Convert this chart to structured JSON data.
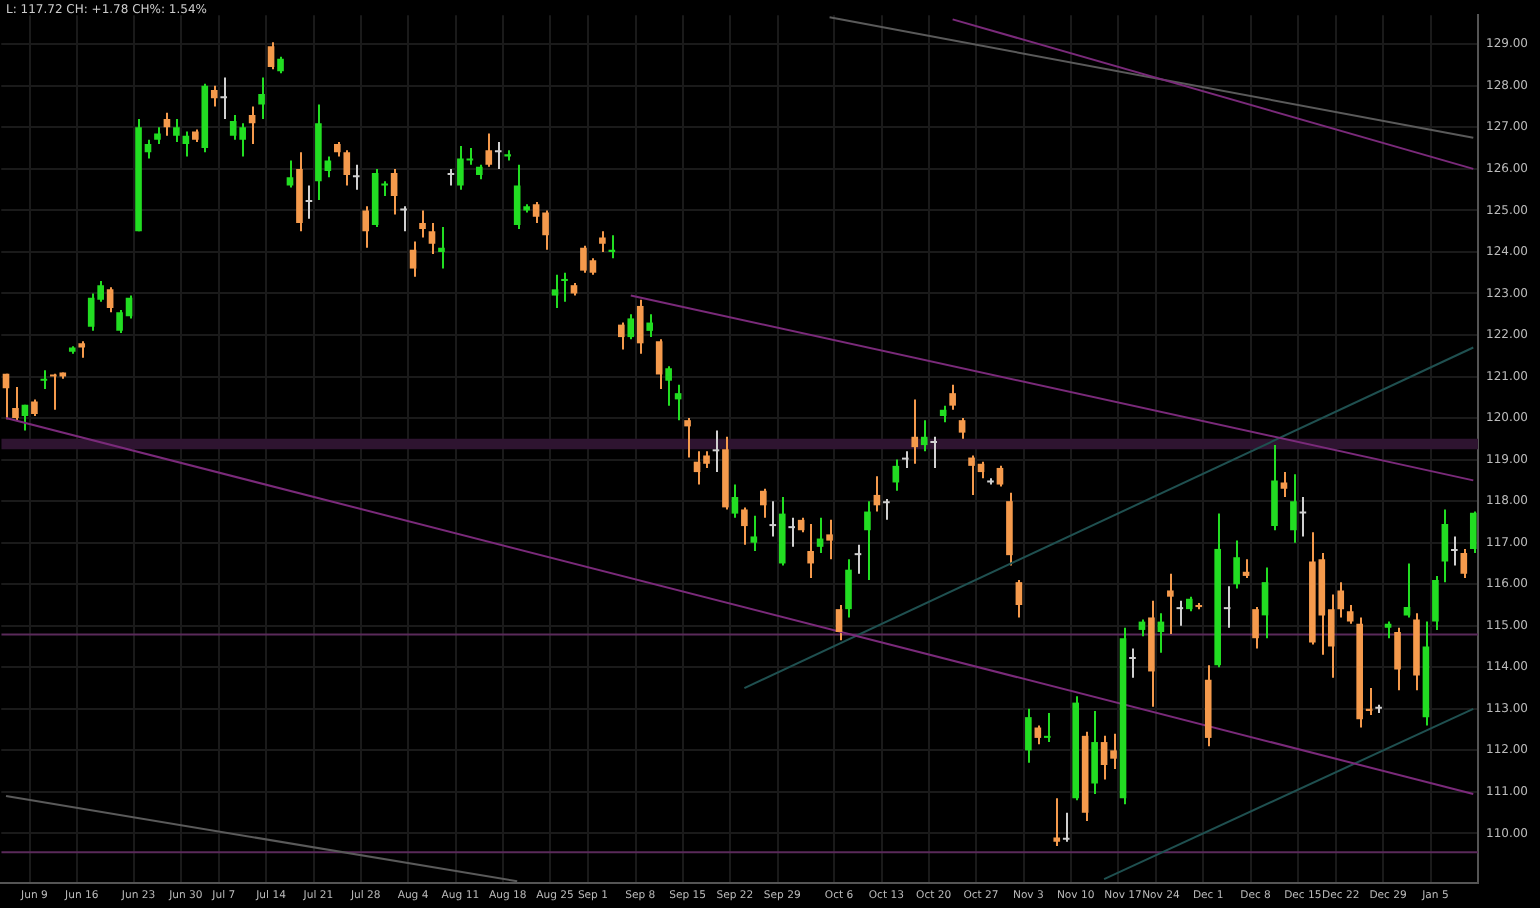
{
  "chart_data": {
    "type": "candlestick",
    "annotations": [
      "L: 117.72 CH: +1.78 CH%: 1.54%"
    ],
    "categories": [
      null,
      null,
      null,
      "Jun 9",
      null,
      null,
      null,
      null,
      "Jun 16",
      null,
      null,
      null,
      null,
      null,
      "Jun 23",
      null,
      null,
      null,
      null,
      "Jun 30",
      null,
      null,
      null,
      "Jul 7",
      null,
      null,
      null,
      null,
      "Jul 14",
      null,
      null,
      null,
      null,
      "Jul 21",
      null,
      null,
      null,
      null,
      "Jul 28",
      null,
      null,
      null,
      null,
      "Aug 4",
      null,
      null,
      null,
      null,
      "Aug 11",
      null,
      null,
      null,
      null,
      "Aug 18",
      null,
      null,
      null,
      null,
      "Aug 25",
      null,
      null,
      null,
      "Sep 1",
      null,
      null,
      null,
      null,
      "Sep 8",
      null,
      null,
      null,
      null,
      "Sep 15",
      null,
      null,
      null,
      null,
      "Sep 22",
      null,
      null,
      null,
      null,
      "Sep 29",
      null,
      null,
      null,
      null,
      null,
      "Oct 6",
      null,
      null,
      null,
      null,
      "Oct 13",
      null,
      null,
      null,
      null,
      "Oct 20",
      null,
      null,
      null,
      null,
      "Oct 27",
      null,
      null,
      null,
      null,
      "Nov 3",
      null,
      null,
      null,
      null,
      "Nov 10",
      null,
      null,
      null,
      null,
      "Nov 17",
      null,
      null,
      null,
      "Nov 24",
      null,
      null,
      null,
      null,
      "Dec 1",
      null,
      null,
      null,
      null,
      "Dec 8",
      null,
      null,
      null,
      null,
      "Dec 15",
      null,
      null,
      null,
      "Dec 22",
      null,
      null,
      null,
      null,
      "Dec 29",
      null,
      null,
      null,
      null,
      "Jan 5",
      null,
      null,
      null,
      null
    ],
    "ohlc": [
      [
        121.07,
        121.07,
        119.97,
        120.72
      ],
      [
        120.24,
        120.75,
        119.94,
        120.0
      ],
      [
        120.05,
        120.32,
        119.7,
        120.32
      ],
      [
        120.4,
        120.45,
        120.05,
        120.1
      ],
      [
        120.9,
        121.15,
        120.7,
        120.95
      ],
      [
        121.05,
        121.07,
        120.2,
        121.0
      ],
      [
        121.1,
        121.1,
        120.95,
        121.0
      ],
      [
        121.6,
        121.73,
        121.55,
        121.7
      ],
      [
        121.8,
        121.85,
        121.45,
        121.7
      ],
      [
        122.2,
        123.0,
        122.1,
        122.9
      ],
      [
        122.85,
        123.3,
        122.8,
        123.2
      ],
      [
        123.1,
        123.15,
        122.55,
        122.65
      ],
      [
        122.1,
        122.6,
        122.05,
        122.55
      ],
      [
        122.45,
        122.95,
        122.4,
        122.9
      ],
      [
        124.5,
        127.2,
        124.5,
        127.0
      ],
      [
        126.4,
        126.7,
        126.25,
        126.6
      ],
      [
        126.7,
        127.0,
        126.6,
        126.85
      ],
      [
        127.2,
        127.35,
        126.8,
        127.0
      ],
      [
        126.8,
        127.2,
        126.65,
        127.0
      ],
      [
        126.6,
        126.9,
        126.3,
        126.8
      ],
      [
        126.9,
        126.95,
        126.65,
        126.7
      ],
      [
        126.5,
        128.05,
        126.4,
        128.0
      ],
      [
        127.9,
        128.0,
        127.5,
        127.7
      ],
      [
        127.7,
        128.2,
        127.2,
        127.7
      ],
      [
        126.8,
        127.3,
        126.7,
        127.15
      ],
      [
        126.7,
        127.1,
        126.3,
        127.0
      ],
      [
        127.3,
        127.5,
        126.6,
        127.1
      ],
      [
        127.55,
        128.2,
        127.2,
        127.8
      ],
      [
        128.95,
        129.05,
        128.4,
        128.45
      ],
      [
        128.35,
        128.7,
        128.3,
        128.65
      ],
      [
        125.6,
        126.2,
        125.55,
        125.8
      ],
      [
        126.0,
        126.4,
        124.5,
        124.7
      ],
      [
        125.2,
        125.6,
        124.8,
        125.2
      ],
      [
        125.7,
        127.55,
        125.25,
        127.1
      ],
      [
        125.95,
        126.3,
        125.8,
        126.2
      ],
      [
        126.6,
        126.65,
        126.3,
        126.4
      ],
      [
        126.4,
        126.45,
        125.6,
        125.85
      ],
      [
        125.8,
        126.1,
        125.5,
        125.8
      ],
      [
        125.0,
        125.1,
        124.1,
        124.5
      ],
      [
        124.65,
        126.0,
        124.6,
        125.9
      ],
      [
        125.6,
        125.7,
        125.35,
        125.65
      ],
      [
        125.9,
        126.0,
        124.9,
        125.35
      ],
      [
        125.0,
        125.1,
        124.5,
        125.0
      ],
      [
        124.05,
        124.25,
        123.4,
        123.6
      ],
      [
        124.7,
        125.0,
        124.35,
        124.55
      ],
      [
        124.5,
        124.7,
        123.95,
        124.2
      ],
      [
        124.0,
        124.6,
        123.6,
        124.1
      ],
      [
        125.85,
        126.0,
        125.6,
        125.85
      ],
      [
        125.6,
        126.55,
        125.5,
        126.25
      ],
      [
        126.2,
        126.5,
        126.1,
        126.25
      ],
      [
        125.85,
        126.1,
        125.75,
        126.05
      ],
      [
        126.45,
        126.85,
        126.05,
        126.1
      ],
      [
        126.4,
        126.65,
        126.0,
        126.4
      ],
      [
        126.3,
        126.45,
        126.2,
        126.35
      ],
      [
        124.65,
        126.1,
        124.55,
        125.6
      ],
      [
        125.0,
        125.15,
        124.95,
        125.1
      ],
      [
        125.15,
        125.2,
        124.7,
        124.85
      ],
      [
        124.95,
        125.0,
        124.05,
        124.4
      ],
      [
        122.95,
        123.45,
        122.65,
        123.1
      ],
      [
        123.3,
        123.5,
        122.8,
        123.35
      ],
      [
        123.2,
        123.25,
        122.95,
        123.0
      ],
      [
        124.1,
        124.15,
        123.5,
        123.55
      ],
      [
        123.8,
        123.85,
        123.45,
        123.5
      ],
      [
        124.35,
        124.5,
        124.0,
        124.2
      ],
      [
        124.0,
        124.4,
        123.85,
        124.05
      ],
      [
        122.25,
        122.3,
        121.65,
        121.95
      ],
      [
        121.95,
        122.5,
        121.9,
        122.4
      ],
      [
        122.7,
        122.85,
        121.55,
        121.8
      ],
      [
        122.1,
        122.5,
        121.95,
        122.3
      ],
      [
        121.85,
        121.9,
        120.7,
        121.05
      ],
      [
        120.9,
        121.25,
        120.3,
        121.2
      ],
      [
        120.45,
        120.8,
        119.95,
        120.6
      ],
      [
        119.95,
        120.0,
        119.05,
        119.8
      ],
      [
        118.95,
        119.2,
        118.4,
        118.7
      ],
      [
        119.1,
        119.2,
        118.8,
        118.9
      ],
      [
        119.2,
        119.7,
        118.7,
        119.2
      ],
      [
        119.25,
        119.55,
        117.8,
        117.85
      ],
      [
        117.7,
        118.4,
        117.6,
        118.1
      ],
      [
        117.8,
        117.85,
        116.95,
        117.4
      ],
      [
        117.0,
        117.65,
        116.8,
        117.15
      ],
      [
        118.25,
        118.3,
        117.6,
        117.9
      ],
      [
        117.4,
        118.0,
        117.15,
        117.4
      ],
      [
        116.5,
        118.1,
        116.45,
        117.7
      ],
      [
        117.35,
        117.6,
        116.9,
        117.35
      ],
      [
        117.55,
        117.6,
        117.25,
        117.3
      ],
      [
        116.8,
        117.45,
        116.15,
        116.5
      ],
      [
        116.9,
        117.6,
        116.75,
        117.1
      ],
      [
        117.2,
        117.55,
        116.6,
        117.05
      ],
      [
        115.4,
        115.5,
        114.65,
        114.85
      ],
      [
        115.4,
        116.6,
        115.2,
        116.35
      ],
      [
        116.7,
        116.95,
        116.25,
        116.7
      ],
      [
        117.3,
        118.0,
        116.1,
        117.75
      ],
      [
        118.15,
        118.6,
        117.75,
        117.9
      ],
      [
        117.95,
        118.05,
        117.55,
        117.95
      ],
      [
        118.45,
        119.0,
        118.25,
        118.85
      ],
      [
        119.0,
        119.2,
        118.8,
        119.0
      ],
      [
        119.55,
        120.45,
        118.9,
        119.3
      ],
      [
        119.35,
        119.95,
        119.2,
        119.55
      ],
      [
        119.4,
        119.55,
        118.8,
        119.4
      ],
      [
        120.05,
        120.3,
        119.9,
        120.2
      ],
      [
        120.6,
        120.8,
        120.2,
        120.3
      ],
      [
        119.95,
        120.0,
        119.5,
        119.65
      ],
      [
        119.05,
        119.1,
        118.15,
        118.85
      ],
      [
        118.9,
        118.95,
        118.55,
        118.7
      ],
      [
        118.45,
        118.55,
        118.4,
        118.45
      ],
      [
        118.8,
        118.85,
        118.35,
        118.4
      ],
      [
        118.0,
        118.2,
        116.45,
        116.7
      ],
      [
        116.05,
        116.1,
        115.2,
        115.5
      ],
      [
        112.0,
        113.0,
        111.7,
        112.8
      ],
      [
        112.55,
        112.6,
        112.15,
        112.3
      ],
      [
        112.3,
        112.9,
        112.2,
        112.35
      ],
      [
        109.9,
        110.85,
        109.7,
        109.8
      ],
      [
        109.85,
        110.5,
        109.8,
        109.85
      ],
      [
        110.85,
        113.3,
        110.8,
        113.15
      ],
      [
        112.35,
        112.45,
        110.3,
        110.5
      ],
      [
        111.2,
        112.95,
        110.95,
        112.2
      ],
      [
        112.2,
        112.35,
        111.3,
        111.65
      ],
      [
        112.0,
        112.4,
        111.55,
        111.8
      ],
      [
        110.85,
        114.95,
        110.7,
        114.7
      ],
      [
        114.2,
        114.45,
        113.75,
        114.2
      ],
      [
        114.9,
        115.15,
        114.75,
        115.1
      ],
      [
        115.2,
        115.6,
        113.05,
        113.9
      ],
      [
        114.85,
        115.3,
        114.35,
        115.1
      ],
      [
        115.85,
        116.25,
        114.8,
        115.7
      ],
      [
        115.4,
        115.6,
        115.0,
        115.4
      ],
      [
        115.4,
        115.7,
        115.35,
        115.65
      ],
      [
        115.5,
        115.55,
        115.4,
        115.45
      ],
      [
        113.7,
        114.05,
        112.1,
        112.3
      ],
      [
        114.05,
        117.7,
        114.0,
        116.85
      ],
      [
        115.4,
        115.95,
        114.95,
        115.4
      ],
      [
        116.0,
        117.05,
        115.9,
        116.65
      ],
      [
        116.3,
        116.6,
        116.15,
        116.2
      ],
      [
        115.4,
        115.45,
        114.45,
        114.7
      ],
      [
        115.25,
        116.4,
        114.7,
        116.05
      ],
      [
        117.4,
        119.35,
        117.3,
        118.5
      ],
      [
        118.45,
        118.7,
        118.1,
        118.3
      ],
      [
        117.3,
        118.65,
        117.0,
        118.0
      ],
      [
        117.7,
        118.1,
        117.15,
        117.7
      ],
      [
        116.55,
        117.25,
        114.55,
        114.6
      ],
      [
        116.6,
        116.75,
        114.3,
        115.25
      ],
      [
        115.4,
        115.75,
        113.75,
        114.5
      ],
      [
        115.85,
        116.05,
        115.2,
        115.4
      ],
      [
        115.35,
        115.5,
        115.05,
        115.1
      ],
      [
        115.05,
        115.2,
        112.55,
        112.75
      ],
      [
        113.0,
        113.5,
        112.85,
        112.95
      ],
      [
        113.0,
        113.1,
        112.9,
        113.0
      ],
      [
        114.95,
        115.1,
        114.7,
        115.05
      ],
      [
        114.85,
        114.95,
        113.45,
        113.95
      ],
      [
        115.25,
        116.5,
        115.2,
        115.45
      ],
      [
        115.15,
        115.3,
        113.45,
        113.8
      ],
      [
        112.8,
        115.1,
        112.6,
        114.5
      ],
      [
        115.1,
        116.2,
        114.9,
        116.1
      ],
      [
        116.55,
        117.8,
        116.05,
        117.45
      ],
      [
        116.8,
        117.15,
        116.45,
        116.8
      ],
      [
        116.75,
        116.85,
        116.15,
        116.25
      ],
      [
        116.85,
        117.75,
        116.75,
        117.72
      ]
    ],
    "colors": [
      "#f59a4c",
      "#f59a4c",
      "#22dd22",
      "#f59a4c",
      "#22dd22",
      "#f59a4c",
      "#f59a4c",
      "#22dd22",
      "#f59a4c",
      "#22dd22",
      "#22dd22",
      "#f59a4c",
      "#22dd22",
      "#22dd22",
      "#22dd22",
      "#22dd22",
      "#22dd22",
      "#f59a4c",
      "#22dd22",
      "#22dd22",
      "#f59a4c",
      "#22dd22",
      "#f59a4c",
      "#d0d0d0",
      "#22dd22",
      "#22dd22",
      "#f59a4c",
      "#22dd22",
      "#f59a4c",
      "#22dd22",
      "#22dd22",
      "#f59a4c",
      "#d0d0d0",
      "#22dd22",
      "#22dd22",
      "#f59a4c",
      "#f59a4c",
      "#d0d0d0",
      "#f59a4c",
      "#22dd22",
      "#22dd22",
      "#f59a4c",
      "#d0d0d0",
      "#f59a4c",
      "#f59a4c",
      "#f59a4c",
      "#22dd22",
      "#d0d0d0",
      "#22dd22",
      "#22dd22",
      "#22dd22",
      "#f59a4c",
      "#d0d0d0",
      "#22dd22",
      "#22dd22",
      "#22dd22",
      "#f59a4c",
      "#f59a4c",
      "#22dd22",
      "#22dd22",
      "#f59a4c",
      "#f59a4c",
      "#f59a4c",
      "#f59a4c",
      "#22dd22",
      "#f59a4c",
      "#22dd22",
      "#f59a4c",
      "#22dd22",
      "#f59a4c",
      "#22dd22",
      "#22dd22",
      "#f59a4c",
      "#f59a4c",
      "#f59a4c",
      "#d0d0d0",
      "#f59a4c",
      "#22dd22",
      "#f59a4c",
      "#22dd22",
      "#f59a4c",
      "#d0d0d0",
      "#22dd22",
      "#d0d0d0",
      "#f59a4c",
      "#f59a4c",
      "#22dd22",
      "#f59a4c",
      "#f59a4c",
      "#22dd22",
      "#d0d0d0",
      "#22dd22",
      "#f59a4c",
      "#d0d0d0",
      "#22dd22",
      "#d0d0d0",
      "#f59a4c",
      "#22dd22",
      "#d0d0d0",
      "#22dd22",
      "#f59a4c",
      "#f59a4c",
      "#f59a4c",
      "#f59a4c",
      "#d0d0d0",
      "#f59a4c",
      "#f59a4c",
      "#f59a4c",
      "#22dd22",
      "#f59a4c",
      "#22dd22",
      "#f59a4c",
      "#d0d0d0",
      "#22dd22",
      "#f59a4c",
      "#22dd22",
      "#f59a4c",
      "#f59a4c",
      "#22dd22",
      "#d0d0d0",
      "#22dd22",
      "#f59a4c",
      "#22dd22",
      "#f59a4c",
      "#d0d0d0",
      "#22dd22",
      "#f59a4c",
      "#f59a4c",
      "#22dd22",
      "#d0d0d0",
      "#22dd22",
      "#f59a4c",
      "#f59a4c",
      "#22dd22",
      "#22dd22",
      "#f59a4c",
      "#22dd22",
      "#d0d0d0",
      "#f59a4c",
      "#f59a4c",
      "#f59a4c",
      "#f59a4c",
      "#f59a4c",
      "#f59a4c",
      "#f59a4c",
      "#d0d0d0",
      "#22dd22",
      "#f59a4c",
      "#22dd22",
      "#f59a4c",
      "#22dd22",
      "#22dd22",
      "#22dd22",
      "#d0d0d0",
      "#f59a4c",
      "#22dd22"
    ],
    "series": [
      {
        "type": "line",
        "color": "#7a2a7a",
        "values": [
          120.0,
          null,
          null,
          null,
          null,
          null,
          null,
          null,
          null,
          null,
          null,
          null,
          null,
          null,
          null,
          null,
          null,
          null,
          null,
          null,
          null,
          null,
          null,
          null,
          null,
          null,
          null,
          null,
          null,
          null,
          null,
          null,
          null,
          null,
          null,
          null,
          null,
          null,
          null,
          null,
          null,
          null,
          null,
          null,
          null,
          null,
          null,
          null,
          null,
          null,
          null,
          null,
          null,
          null,
          null,
          null,
          null,
          null,
          null,
          null,
          null,
          null,
          null,
          null,
          null,
          null,
          null,
          null,
          null,
          null,
          null,
          null,
          null,
          null,
          null,
          null,
          null,
          null,
          null,
          null,
          null,
          null,
          null,
          null,
          null,
          null,
          null,
          null,
          null,
          null,
          null,
          null,
          null,
          null,
          null,
          null,
          null,
          null,
          null,
          null,
          null,
          null,
          null,
          null,
          null,
          null,
          null,
          null,
          null,
          null,
          null,
          null,
          null,
          null,
          null,
          null,
          null,
          null,
          null,
          null,
          null,
          null,
          null,
          null,
          null,
          null,
          null,
          null,
          null,
          null,
          null,
          null,
          null,
          null,
          null,
          null,
          null,
          null,
          null,
          null,
          null,
          null,
          null,
          null,
          null,
          null,
          null,
          null,
          null,
          null,
          null,
          null,
          null,
          null,
          null,
          110.95
        ]
      },
      {
        "type": "line",
        "color": "#7a2a7a",
        "values": [
          null,
          null,
          null,
          null,
          null,
          null,
          null,
          null,
          null,
          null,
          null,
          null,
          null,
          null,
          null,
          null,
          null,
          null,
          null,
          null,
          null,
          null,
          null,
          null,
          null,
          null,
          null,
          null,
          null,
          null,
          null,
          null,
          null,
          null,
          null,
          null,
          null,
          null,
          null,
          null,
          null,
          null,
          null,
          null,
          null,
          null,
          null,
          null,
          null,
          null,
          null,
          null,
          null,
          null,
          null,
          null,
          null,
          null,
          null,
          null,
          null,
          null,
          null,
          null,
          null,
          null,
          122.95,
          null,
          null,
          null,
          null,
          null,
          null,
          null,
          null,
          null,
          null,
          null,
          null,
          null,
          null,
          null,
          null,
          null,
          null,
          null,
          null,
          null,
          null,
          null,
          null,
          null,
          null,
          null,
          null,
          null,
          null,
          null,
          null,
          null,
          null,
          null,
          null,
          null,
          null,
          null,
          null,
          null,
          null,
          null,
          null,
          null,
          null,
          null,
          null,
          null,
          null,
          null,
          null,
          null,
          null,
          null,
          null,
          null,
          null,
          null,
          null,
          null,
          null,
          null,
          null,
          null,
          null,
          null,
          null,
          null,
          null,
          null,
          null,
          null,
          null,
          null,
          null,
          null,
          null,
          null,
          null,
          null,
          null,
          null,
          null,
          null,
          null,
          null,
          null,
          118.5
        ]
      },
      {
        "type": "line",
        "color": "#7a2a7a",
        "values": [
          null,
          null,
          null,
          null,
          null,
          null,
          null,
          null,
          null,
          null,
          null,
          null,
          null,
          null,
          null,
          null,
          null,
          null,
          null,
          null,
          null,
          null,
          null,
          null,
          null,
          null,
          null,
          null,
          null,
          null,
          null,
          null,
          null,
          null,
          null,
          null,
          null,
          null,
          null,
          null,
          null,
          null,
          null,
          null,
          null,
          null,
          null,
          null,
          null,
          null,
          null,
          null,
          null,
          null,
          null,
          null,
          null,
          null,
          null,
          null,
          null,
          null,
          null,
          null,
          null,
          null,
          null,
          null,
          null,
          null,
          null,
          null,
          null,
          null,
          null,
          null,
          null,
          null,
          null,
          null,
          null,
          null,
          null,
          null,
          null,
          null,
          null,
          null,
          null,
          null,
          null,
          null,
          null,
          null,
          null,
          null,
          null,
          null,
          null,
          null,
          129.6,
          null,
          null,
          null,
          null,
          null,
          null,
          null,
          null,
          null,
          null,
          null,
          null,
          null,
          null,
          null,
          null,
          null,
          null,
          null,
          null,
          null,
          null,
          null,
          null,
          null,
          null,
          null,
          null,
          null,
          null,
          null,
          null,
          null,
          null,
          null,
          null,
          null,
          null,
          null,
          null,
          null,
          null,
          null,
          null,
          null,
          null,
          null,
          null,
          null,
          null,
          null,
          null,
          null,
          null,
          126.0
        ]
      },
      {
        "type": "line",
        "color": "#5a5a5a",
        "values": [
          null,
          null,
          null,
          null,
          null,
          null,
          null,
          null,
          null,
          null,
          null,
          null,
          null,
          null,
          null,
          null,
          null,
          null,
          null,
          null,
          null,
          null,
          null,
          null,
          null,
          null,
          null,
          null,
          null,
          null,
          null,
          null,
          null,
          null,
          null,
          null,
          null,
          null,
          null,
          null,
          null,
          null,
          null,
          null,
          null,
          null,
          null,
          null,
          null,
          null,
          null,
          null,
          null,
          null,
          null,
          null,
          null,
          null,
          null,
          null,
          null,
          null,
          null,
          null,
          null,
          null,
          null,
          null,
          null,
          null,
          null,
          null,
          null,
          null,
          null,
          null,
          null,
          null,
          null,
          null,
          null,
          null,
          null,
          null,
          null,
          null,
          null,
          129.65,
          null,
          null,
          null,
          null,
          null,
          null,
          null,
          null,
          null,
          null,
          null,
          null,
          null,
          null,
          null,
          null,
          null,
          null,
          null,
          null,
          null,
          null,
          null,
          null,
          null,
          null,
          null,
          null,
          null,
          null,
          null,
          null,
          null,
          null,
          null,
          null,
          null,
          null,
          null,
          null,
          null,
          null,
          null,
          null,
          null,
          null,
          null,
          null,
          null,
          null,
          null,
          null,
          null,
          null,
          null,
          null,
          null,
          null,
          null,
          null,
          null,
          null,
          null,
          null,
          null,
          null,
          null,
          126.75
        ]
      },
      {
        "type": "line",
        "color": "#1f5050",
        "values": [
          null,
          null,
          null,
          null,
          null,
          null,
          null,
          null,
          null,
          null,
          null,
          null,
          null,
          null,
          null,
          null,
          null,
          null,
          null,
          null,
          null,
          null,
          null,
          null,
          null,
          null,
          null,
          null,
          null,
          null,
          null,
          null,
          null,
          null,
          null,
          null,
          null,
          null,
          null,
          null,
          null,
          null,
          null,
          null,
          null,
          null,
          null,
          null,
          null,
          null,
          null,
          null,
          null,
          null,
          null,
          null,
          null,
          null,
          null,
          null,
          null,
          null,
          null,
          null,
          null,
          null,
          null,
          null,
          null,
          null,
          null,
          null,
          null,
          null,
          null,
          null,
          null,
          null,
          113.5,
          null,
          null,
          null,
          null,
          null,
          null,
          null,
          null,
          null,
          null,
          null,
          null,
          null,
          null,
          null,
          null,
          null,
          null,
          null,
          null,
          null,
          null,
          null,
          null,
          null,
          null,
          null,
          null,
          null,
          null,
          null,
          null,
          null,
          null,
          null,
          null,
          null,
          null,
          null,
          null,
          null,
          null,
          null,
          null,
          null,
          null,
          null,
          null,
          null,
          null,
          null,
          null,
          null,
          null,
          null,
          null,
          null,
          null,
          null,
          null,
          null,
          null,
          null,
          null,
          null,
          null,
          null,
          null,
          null,
          null,
          null,
          null,
          null,
          null,
          null,
          null,
          121.7
        ]
      },
      {
        "type": "line",
        "color": "#1f5050",
        "values": [
          null,
          null,
          null,
          null,
          null,
          null,
          null,
          null,
          null,
          null,
          null,
          null,
          null,
          null,
          null,
          null,
          null,
          null,
          null,
          null,
          null,
          null,
          null,
          null,
          null,
          null,
          null,
          null,
          null,
          null,
          null,
          null,
          null,
          null,
          null,
          null,
          null,
          null,
          null,
          null,
          null,
          null,
          null,
          null,
          null,
          null,
          null,
          null,
          null,
          null,
          null,
          null,
          null,
          null,
          null,
          null,
          null,
          null,
          null,
          null,
          null,
          null,
          null,
          null,
          null,
          null,
          null,
          null,
          null,
          null,
          null,
          null,
          null,
          null,
          null,
          null,
          null,
          null,
          null,
          null,
          null,
          null,
          null,
          null,
          null,
          null,
          null,
          null,
          null,
          null,
          null,
          null,
          null,
          null,
          null,
          null,
          null,
          null,
          null,
          null,
          null,
          null,
          null,
          null,
          null,
          null,
          null,
          null,
          null,
          null,
          null,
          null,
          null,
          null,
          null,
          null,
          108.9,
          null,
          null,
          null,
          null,
          null,
          null,
          null,
          null,
          null,
          null,
          null,
          null,
          null,
          null,
          null,
          null,
          null,
          null,
          null,
          null,
          null,
          null,
          null,
          null,
          null,
          null,
          null,
          null,
          null,
          null,
          null,
          null,
          null,
          null,
          null,
          null,
          null,
          null,
          113.0
        ]
      },
      {
        "type": "line",
        "color": "#5a5a5a",
        "values": [
          110.9,
          null,
          null,
          null,
          null,
          null,
          null,
          null,
          null,
          null,
          null,
          null,
          null,
          null,
          null,
          null,
          null,
          null,
          null,
          null,
          null,
          null,
          null,
          null,
          null,
          null,
          null,
          null,
          null,
          null,
          null,
          null,
          null,
          null,
          null,
          null,
          null,
          null,
          null,
          null,
          null,
          null,
          null,
          null,
          null,
          null,
          null,
          null,
          null,
          null,
          null,
          null,
          null,
          null,
          108.85,
          null,
          null,
          null,
          null,
          null,
          null,
          null,
          null,
          null,
          null,
          null,
          null,
          null,
          null,
          null,
          null,
          null,
          null,
          null,
          null,
          null,
          null,
          null,
          null,
          null,
          null,
          null,
          null,
          null,
          null,
          null,
          null,
          null,
          null,
          null,
          null,
          null,
          null,
          null,
          null,
          null,
          null,
          null,
          null,
          null,
          null,
          null,
          null,
          null,
          null,
          null,
          null,
          null,
          null,
          null,
          null,
          null,
          null,
          null,
          null,
          null,
          null,
          null,
          null,
          null,
          null,
          null,
          null,
          null,
          null,
          null,
          null,
          null,
          null,
          null,
          null,
          null,
          null,
          null,
          null,
          null,
          null,
          null,
          null,
          null,
          null,
          null,
          null,
          null,
          null,
          null,
          null,
          null,
          null,
          null,
          null,
          null,
          null,
          null,
          null,
          null
        ]
      }
    ],
    "ref_lines": [
      {
        "axis": "y",
        "value": 114.79,
        "color": "#5a2a5a"
      },
      {
        "axis": "y",
        "value": 109.55,
        "color": "#5a2a5a"
      }
    ],
    "bands": [
      {
        "axis": "y",
        "from": 119.25,
        "to": 119.5,
        "color": "#2e1430"
      }
    ],
    "ylim": [
      108.8,
      129.7
    ],
    "yticks": [
      {
        "value": 110,
        "label": "110.00"
      },
      {
        "value": 111,
        "label": "111.00"
      },
      {
        "value": 112,
        "label": "112.00"
      },
      {
        "value": 113,
        "label": "113.00"
      },
      {
        "value": 114,
        "label": "114.00"
      },
      {
        "value": 115,
        "label": "115.00"
      },
      {
        "value": 116,
        "label": "116.00"
      },
      {
        "value": 117,
        "label": "117.00"
      },
      {
        "value": 118,
        "label": "118.00"
      },
      {
        "value": 119,
        "label": "119.00"
      },
      {
        "value": 120,
        "label": "120.00"
      },
      {
        "value": 121,
        "label": "121.00"
      },
      {
        "value": 122,
        "label": "122.00"
      },
      {
        "value": 123,
        "label": "123.00"
      },
      {
        "value": 124,
        "label": "124.00"
      },
      {
        "value": 125,
        "label": "125.00"
      },
      {
        "value": 126,
        "label": "126.00"
      },
      {
        "value": 127,
        "label": "127.00"
      },
      {
        "value": 128,
        "label": "128.00"
      },
      {
        "value": 129,
        "label": "129.00"
      }
    ],
    "grid": true,
    "legend": false
  }
}
